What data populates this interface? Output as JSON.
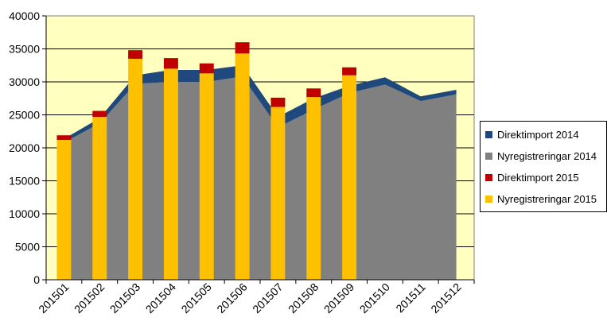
{
  "chart_data": {
    "type": "bar",
    "title": "",
    "xlabel": "",
    "ylabel": "",
    "ylim": [
      0,
      40000
    ],
    "yticks": [
      0,
      5000,
      10000,
      15000,
      20000,
      25000,
      30000,
      35000,
      40000
    ],
    "ytick_labels": [
      "0",
      "5000",
      "10000",
      "15000",
      "20000",
      "25000",
      "30000",
      "35000",
      "40000"
    ],
    "grid": true,
    "legend_position": "right",
    "plot_background": "#FFFFC0",
    "categories": [
      "201501",
      "201502",
      "201503",
      "201504",
      "201505",
      "201506",
      "201507",
      "201508",
      "201509",
      "201510",
      "201511",
      "201512"
    ],
    "area_series": [
      {
        "name": "Nyregistreringar 2014",
        "color": "#808080",
        "values": [
          20800,
          23700,
          29700,
          30000,
          30000,
          30800,
          23100,
          25800,
          28300,
          29600,
          27100,
          28100
        ]
      },
      {
        "name": "Direktimport 2014",
        "color": "#1F497D",
        "values": [
          550,
          800,
          1300,
          1800,
          1800,
          1700,
          1600,
          1700,
          1100,
          1100,
          700,
          700
        ]
      }
    ],
    "bar_series": [
      {
        "name": "Nyregistreringar 2015",
        "color": "#FFC000",
        "values": [
          21200,
          24700,
          33500,
          32000,
          31300,
          34300,
          26200,
          27700,
          31000,
          null,
          null,
          null
        ]
      },
      {
        "name": "Direktimport 2015",
        "color": "#C00000",
        "values": [
          700,
          900,
          1300,
          1600,
          1500,
          1700,
          1400,
          1300,
          1200,
          null,
          null,
          null
        ]
      }
    ]
  },
  "legend": {
    "items": [
      {
        "label": "Direktimport 2014",
        "color": "#1F497D"
      },
      {
        "label": "Nyregistreringar 2014",
        "color": "#808080"
      },
      {
        "label": "Direktimport 2015",
        "color": "#C00000"
      },
      {
        "label": "Nyregistreringar 2015",
        "color": "#FFC000"
      }
    ]
  }
}
